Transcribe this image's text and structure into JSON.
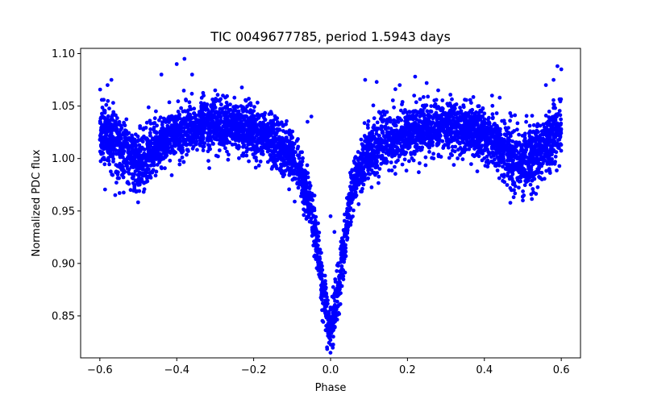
{
  "chart_data": {
    "type": "scatter",
    "title": "TIC 0049677785, period 1.5943 days",
    "xlabel": "Phase",
    "ylabel": "Normalized PDC flux",
    "xlim": [
      -0.65,
      0.65
    ],
    "ylim": [
      0.81,
      1.105
    ],
    "xticks": [
      -0.6,
      -0.4,
      -0.2,
      0.0,
      0.2,
      0.4,
      0.6
    ],
    "xtick_labels": [
      "−0.6",
      "−0.4",
      "−0.2",
      "0.0",
      "0.2",
      "0.4",
      "0.6"
    ],
    "yticks": [
      0.85,
      0.9,
      0.95,
      1.0,
      1.05,
      1.1
    ],
    "ytick_labels": [
      "0.85",
      "0.90",
      "0.95",
      "1.00",
      "1.05",
      "1.10"
    ],
    "grid": false,
    "marker_color": "#0000ff",
    "phase_range": [
      -0.6,
      0.6
    ],
    "curve_profile": {
      "x": [
        -0.6,
        -0.57,
        -0.55,
        -0.52,
        -0.5,
        -0.48,
        -0.45,
        -0.4,
        -0.35,
        -0.3,
        -0.25,
        -0.2,
        -0.15,
        -0.1,
        -0.08,
        -0.06,
        -0.05,
        -0.04,
        -0.03,
        -0.02,
        -0.01,
        0.0,
        0.01,
        0.02,
        0.03,
        0.04,
        0.05,
        0.06,
        0.08,
        0.1,
        0.15,
        0.2,
        0.25,
        0.3,
        0.35,
        0.4,
        0.45,
        0.48,
        0.5,
        0.52,
        0.55,
        0.57,
        0.6
      ],
      "y": [
        1.025,
        1.02,
        1.01,
        1.0,
        0.995,
        1.0,
        1.012,
        1.025,
        1.03,
        1.032,
        1.03,
        1.025,
        1.015,
        1.0,
        0.985,
        0.965,
        0.95,
        0.93,
        0.905,
        0.875,
        0.85,
        0.84,
        0.85,
        0.875,
        0.905,
        0.93,
        0.955,
        0.975,
        0.99,
        1.005,
        1.018,
        1.025,
        1.028,
        1.03,
        1.028,
        1.022,
        1.01,
        1.0,
        0.995,
        1.0,
        1.01,
        1.02,
        1.025
      ]
    },
    "scatter_spread": 0.012,
    "outlier_points": {
      "x": [
        -0.59,
        -0.58,
        -0.57,
        -0.44,
        -0.4,
        -0.38,
        -0.36,
        -0.33,
        -0.3,
        -0.28,
        -0.25,
        -0.22,
        -0.06,
        -0.05,
        0.0,
        0.09,
        0.12,
        0.18,
        0.22,
        0.25,
        0.28,
        0.42,
        0.44,
        0.56,
        0.58,
        0.59,
        0.6,
        -0.52,
        -0.5,
        0.5,
        0.52,
        0.01,
        0.02
      ],
      "y": [
        1.056,
        1.07,
        1.075,
        1.08,
        1.09,
        1.095,
        1.08,
        1.06,
        1.065,
        1.06,
        1.058,
        1.055,
        1.035,
        1.04,
        0.945,
        1.075,
        1.073,
        1.07,
        1.078,
        1.072,
        1.065,
        1.06,
        1.058,
        1.07,
        1.075,
        1.088,
        1.085,
        0.97,
        0.98,
        0.96,
        0.975,
        0.93,
        0.9
      ]
    }
  }
}
